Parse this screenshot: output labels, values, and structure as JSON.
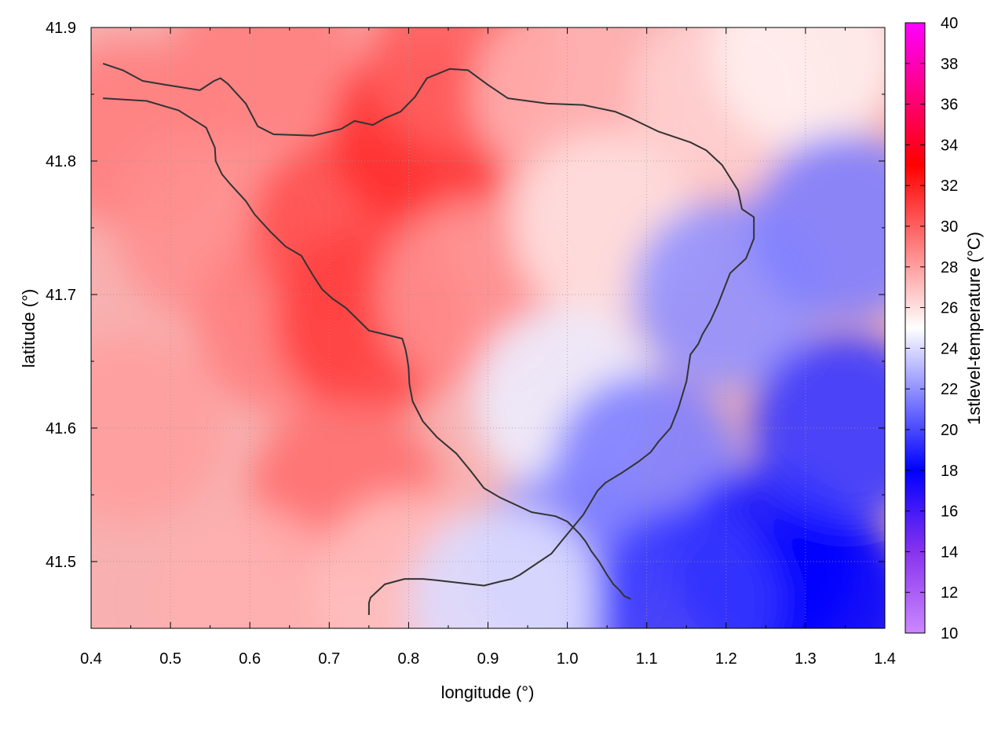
{
  "chart_data": {
    "type": "heatmap",
    "xlabel": "longitude (°)",
    "ylabel": "latitude (°)",
    "colorbar_label": "1stlevel-temperature (°C)",
    "xlim": [
      0.4,
      1.4
    ],
    "ylim": [
      41.45,
      41.9
    ],
    "zlim": [
      10,
      40
    ],
    "x_ticks": [
      "0.4",
      "0.5",
      "0.6",
      "0.7",
      "0.8",
      "0.9",
      "1.0",
      "1.1",
      "1.2",
      "1.3",
      "1.4"
    ],
    "y_ticks": [
      "41.5",
      "41.6",
      "41.7",
      "41.8",
      "41.9"
    ],
    "colorbar_ticks": [
      "10",
      "12",
      "14",
      "16",
      "18",
      "20",
      "22",
      "24",
      "26",
      "28",
      "30",
      "32",
      "34",
      "36",
      "38",
      "40"
    ],
    "colormap": [
      {
        "value": 10,
        "color": "#cc88ff"
      },
      {
        "value": 14,
        "color": "#8833ee"
      },
      {
        "value": 18,
        "color": "#0000ff"
      },
      {
        "value": 25,
        "color": "#ffffff"
      },
      {
        "value": 33,
        "color": "#ff0000"
      },
      {
        "value": 40,
        "color": "#ff00ff"
      }
    ],
    "grid": true,
    "contour_color": "#333333",
    "field_samples": [
      {
        "lon": 0.45,
        "lat": 41.82,
        "t": 29
      },
      {
        "lon": 0.45,
        "lat": 41.6,
        "t": 28
      },
      {
        "lon": 0.55,
        "lat": 41.75,
        "t": 28.5
      },
      {
        "lon": 0.62,
        "lat": 41.88,
        "t": 29
      },
      {
        "lon": 0.65,
        "lat": 41.68,
        "t": 29
      },
      {
        "lon": 0.72,
        "lat": 41.75,
        "t": 30.5
      },
      {
        "lon": 0.75,
        "lat": 41.68,
        "t": 31
      },
      {
        "lon": 0.72,
        "lat": 41.55,
        "t": 29.5
      },
      {
        "lon": 0.82,
        "lat": 41.82,
        "t": 31.5
      },
      {
        "lon": 0.87,
        "lat": 41.88,
        "t": 30
      },
      {
        "lon": 0.88,
        "lat": 41.7,
        "t": 28.5
      },
      {
        "lon": 0.6,
        "lat": 41.47,
        "t": 27.5
      },
      {
        "lon": 0.8,
        "lat": 41.48,
        "t": 27
      },
      {
        "lon": 1.0,
        "lat": 41.85,
        "t": 27.5
      },
      {
        "lon": 1.05,
        "lat": 41.75,
        "t": 26
      },
      {
        "lon": 1.0,
        "lat": 41.62,
        "t": 24.5
      },
      {
        "lon": 1.2,
        "lat": 41.85,
        "t": 26.5
      },
      {
        "lon": 1.3,
        "lat": 41.88,
        "t": 25.5
      },
      {
        "lon": 1.2,
        "lat": 41.7,
        "t": 22
      },
      {
        "lon": 1.35,
        "lat": 41.75,
        "t": 21.5
      },
      {
        "lon": 1.0,
        "lat": 41.5,
        "t": 22
      },
      {
        "lon": 1.1,
        "lat": 41.57,
        "t": 21.5
      },
      {
        "lon": 1.25,
        "lat": 41.5,
        "t": 18.5
      },
      {
        "lon": 1.32,
        "lat": 41.47,
        "t": 18
      },
      {
        "lon": 1.35,
        "lat": 41.6,
        "t": 19.5
      },
      {
        "lon": 1.15,
        "lat": 41.47,
        "t": 19.5
      },
      {
        "lon": 0.92,
        "lat": 41.47,
        "t": 24
      }
    ],
    "contours": [
      [
        [
          0.415,
          41.873
        ],
        [
          0.44,
          41.868
        ],
        [
          0.465,
          41.86
        ],
        [
          0.495,
          41.857
        ],
        [
          0.537,
          41.853
        ],
        [
          0.555,
          41.86
        ],
        [
          0.563,
          41.862
        ],
        [
          0.572,
          41.858
        ],
        [
          0.595,
          41.843
        ],
        [
          0.61,
          41.826
        ],
        [
          0.63,
          41.82
        ],
        [
          0.68,
          41.819
        ],
        [
          0.715,
          41.824
        ],
        [
          0.732,
          41.83
        ],
        [
          0.755,
          41.827
        ],
        [
          0.77,
          41.832
        ],
        [
          0.79,
          41.837
        ],
        [
          0.808,
          41.848
        ],
        [
          0.823,
          41.862
        ],
        [
          0.852,
          41.869
        ],
        [
          0.875,
          41.868
        ],
        [
          0.9,
          41.857
        ],
        [
          0.925,
          41.847
        ],
        [
          0.975,
          41.843
        ],
        [
          1.02,
          41.842
        ],
        [
          1.06,
          41.837
        ],
        [
          1.08,
          41.832
        ],
        [
          1.115,
          41.822
        ],
        [
          1.155,
          41.814
        ],
        [
          1.175,
          41.808
        ],
        [
          1.195,
          41.797
        ],
        [
          1.215,
          41.778
        ],
        [
          1.22,
          41.764
        ],
        [
          1.235,
          41.758
        ],
        [
          1.235,
          41.742
        ],
        [
          1.225,
          41.727
        ],
        [
          1.205,
          41.716
        ],
        [
          1.19,
          41.693
        ],
        [
          1.18,
          41.68
        ],
        [
          1.17,
          41.67
        ],
        [
          1.165,
          41.663
        ],
        [
          1.155,
          41.655
        ],
        [
          1.15,
          41.635
        ],
        [
          1.14,
          41.615
        ],
        [
          1.13,
          41.6
        ],
        [
          1.115,
          41.59
        ],
        [
          1.105,
          41.582
        ],
        [
          1.09,
          41.575
        ],
        [
          1.07,
          41.567
        ],
        [
          1.048,
          41.559
        ],
        [
          1.038,
          41.553
        ],
        [
          1.03,
          41.545
        ],
        [
          1.02,
          41.535
        ],
        [
          0.995,
          41.517
        ],
        [
          0.98,
          41.506
        ],
        [
          0.94,
          41.49
        ],
        [
          0.93,
          41.487
        ],
        [
          0.915,
          41.485
        ],
        [
          0.895,
          41.482
        ],
        [
          0.835,
          41.486
        ],
        [
          0.818,
          41.487
        ],
        [
          0.795,
          41.487
        ],
        [
          0.77,
          41.483
        ],
        [
          0.752,
          41.473
        ],
        [
          0.75,
          41.469
        ],
        [
          0.75,
          41.46
        ]
      ],
      [
        [
          0.415,
          41.847
        ],
        [
          0.47,
          41.845
        ],
        [
          0.51,
          41.838
        ],
        [
          0.545,
          41.825
        ],
        [
          0.556,
          41.81
        ],
        [
          0.557,
          41.8
        ],
        [
          0.565,
          41.79
        ],
        [
          0.575,
          41.783
        ],
        [
          0.595,
          41.77
        ],
        [
          0.606,
          41.76
        ],
        [
          0.626,
          41.747
        ],
        [
          0.645,
          41.736
        ],
        [
          0.665,
          41.729
        ],
        [
          0.68,
          41.714
        ],
        [
          0.691,
          41.704
        ],
        [
          0.704,
          41.697
        ],
        [
          0.721,
          41.69
        ],
        [
          0.75,
          41.673
        ],
        [
          0.792,
          41.667
        ],
        [
          0.796,
          41.659
        ],
        [
          0.798,
          41.653
        ],
        [
          0.8,
          41.645
        ],
        [
          0.801,
          41.633
        ],
        [
          0.805,
          41.62
        ],
        [
          0.818,
          41.605
        ],
        [
          0.836,
          41.593
        ],
        [
          0.86,
          41.581
        ],
        [
          0.878,
          41.568
        ],
        [
          0.895,
          41.555
        ],
        [
          0.915,
          41.548
        ],
        [
          0.955,
          41.537
        ],
        [
          0.985,
          41.534
        ],
        [
          1.0,
          41.53
        ],
        [
          1.015,
          41.521
        ],
        [
          1.023,
          41.515
        ],
        [
          1.03,
          41.508
        ],
        [
          1.04,
          41.5
        ],
        [
          1.045,
          41.495
        ],
        [
          1.05,
          41.49
        ],
        [
          1.058,
          41.483
        ],
        [
          1.065,
          41.479
        ],
        [
          1.072,
          41.474
        ],
        [
          1.08,
          41.472
        ]
      ]
    ]
  }
}
